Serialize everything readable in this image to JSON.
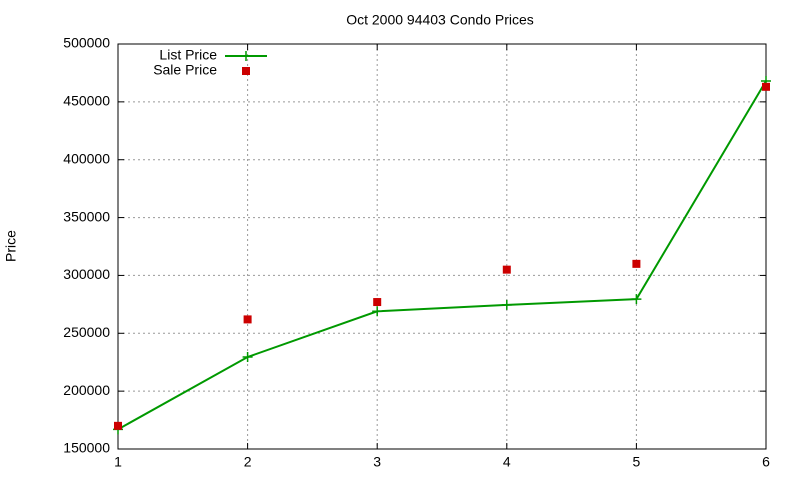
{
  "chart_data": {
    "type": "line",
    "title": "Oct 2000 94403 Condo Prices",
    "y_label": "Price",
    "x": [
      1,
      2,
      3,
      4,
      5,
      6
    ],
    "series": [
      {
        "name": "List Price",
        "color": "#009900",
        "style": "linespoints",
        "marker": "plus",
        "values": [
          167000,
          229500,
          269000,
          274500,
          279500,
          468000
        ]
      },
      {
        "name": "Sale Price",
        "color": "#cc0000",
        "style": "points",
        "marker": "square",
        "values": [
          170000,
          262000,
          277000,
          305000,
          310000,
          463000
        ]
      }
    ],
    "xlim": [
      1,
      6
    ],
    "xticks": [
      1,
      2,
      3,
      4,
      5,
      6
    ],
    "ylim": [
      150000,
      500000
    ],
    "yticks": [
      150000,
      200000,
      250000,
      300000,
      350000,
      400000,
      450000,
      500000
    ],
    "grid": true,
    "legend": "top-left"
  }
}
